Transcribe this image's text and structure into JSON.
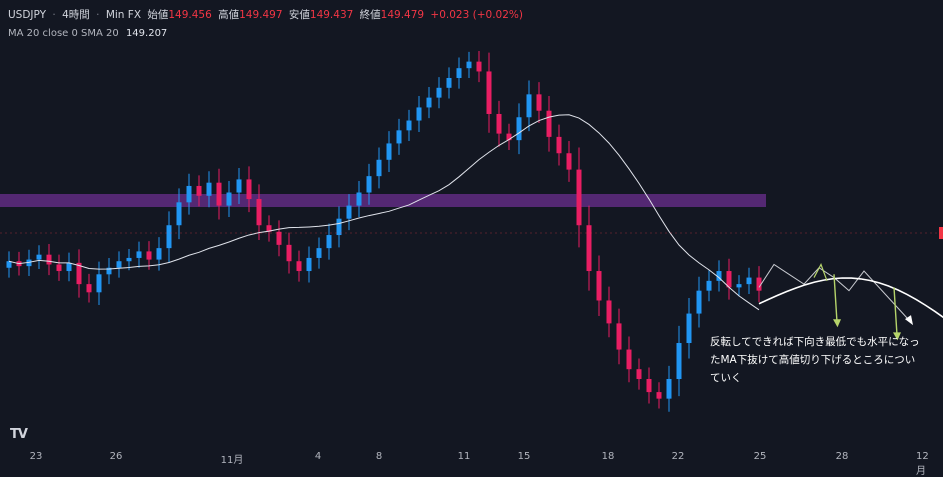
{
  "legend": {
    "symbol": "USDJPY",
    "sep1": "·",
    "interval": "4時間",
    "sep2": "·",
    "source": "Min FX",
    "open_label": "始値",
    "open_value": "149.456",
    "high_label": "高値",
    "high_value": "149.497",
    "low_label": "安値",
    "low_value": "149.437",
    "close_label": "終値",
    "close_value": "149.479",
    "change_value": "+0.023 (+0.02%)"
  },
  "indicator": {
    "label": "MA 20 close 0 SMA 20",
    "value": "149.207"
  },
  "annotation": {
    "line1": "反転してできれば下向き最低でも水平になっ",
    "line2": "たMA下抜けて高値切り下げるところについ",
    "line3": "ていく"
  },
  "logo": "TV",
  "colors": {
    "up": "#2196f3",
    "down": "#e91e63",
    "zone": "#6b2f8f",
    "ma": "#e0e3eb",
    "forecast": "#ffffff",
    "arrow": "#b5d36a",
    "background": "#131722",
    "last_price": "#f23645"
  },
  "chart_data": {
    "type": "candlestick",
    "x_ticks": [
      "23",
      "26",
      "11月",
      "4",
      "8",
      "11",
      "15",
      "18",
      "22",
      "25",
      "28",
      "12月"
    ],
    "ma_period": 20,
    "zone_label": "",
    "closes": [
      150.5,
      150.35,
      150.55,
      150.7,
      150.4,
      150.2,
      150.45,
      149.8,
      149.55,
      150.1,
      150.3,
      150.5,
      150.6,
      150.8,
      150.55,
      150.9,
      151.6,
      152.3,
      152.8,
      152.5,
      152.9,
      152.2,
      152.6,
      153.0,
      152.4,
      151.6,
      151.4,
      151.0,
      150.5,
      150.2,
      150.6,
      150.9,
      151.3,
      151.8,
      152.2,
      152.6,
      153.1,
      153.6,
      154.1,
      154.5,
      154.8,
      155.2,
      155.5,
      155.8,
      156.1,
      156.4,
      156.6,
      156.3,
      155.0,
      154.4,
      154.2,
      154.9,
      155.6,
      155.1,
      154.3,
      153.8,
      153.3,
      151.6,
      150.2,
      149.3,
      148.6,
      147.8,
      147.2,
      146.9,
      146.5,
      146.3,
      146.9,
      148.0,
      148.9,
      149.6,
      149.9,
      150.2,
      149.7,
      149.8,
      150.0,
      149.6
    ],
    "forecast": [
      149.7,
      150.4,
      150.1,
      149.8,
      150.3,
      150.0,
      149.6,
      150.2,
      149.7,
      149.2,
      148.7
    ]
  }
}
